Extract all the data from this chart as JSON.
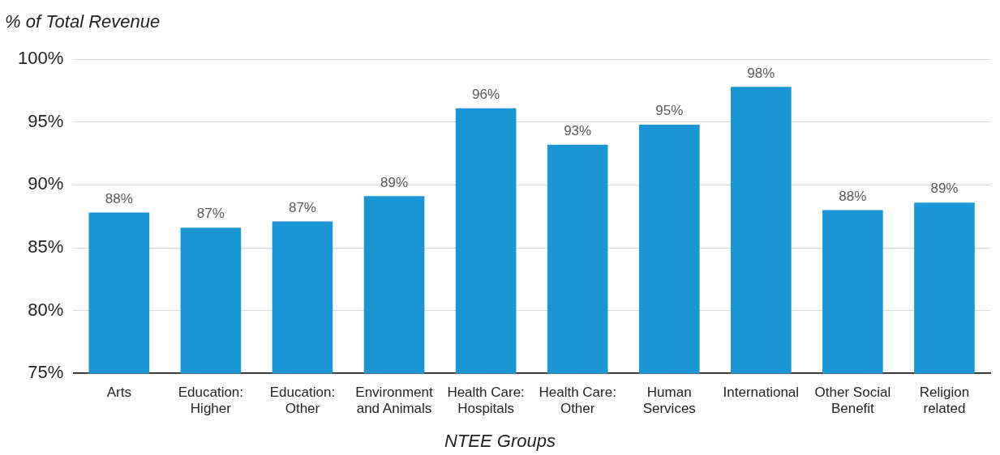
{
  "chart_data": {
    "type": "bar",
    "ylabel": "% of Total Revenue",
    "xlabel": "NTEE Groups",
    "categories": [
      "Arts",
      "Education: Higher",
      "Education: Other",
      "Environment and Animals",
      "Health Care: Hospitals",
      "Health Care: Other",
      "Human Services",
      "International",
      "Other Social Benefit",
      "Religion related"
    ],
    "values": [
      87.8,
      86.6,
      87.1,
      89.1,
      96.1,
      93.2,
      94.8,
      97.8,
      88.0,
      88.6
    ],
    "value_labels": [
      "88%",
      "87%",
      "87%",
      "89%",
      "96%",
      "93%",
      "95%",
      "98%",
      "88%",
      "89%"
    ],
    "color": "#1a96d4",
    "ylim": [
      75,
      100
    ],
    "yticks": [
      {
        "value": 75,
        "label": "75%"
      },
      {
        "value": 80,
        "label": "80%"
      },
      {
        "value": 85,
        "label": "85%"
      },
      {
        "value": 90,
        "label": "90%"
      },
      {
        "value": 95,
        "label": "95%"
      },
      {
        "value": 100,
        "label": "100%"
      }
    ],
    "grid": "y",
    "legend": false
  }
}
